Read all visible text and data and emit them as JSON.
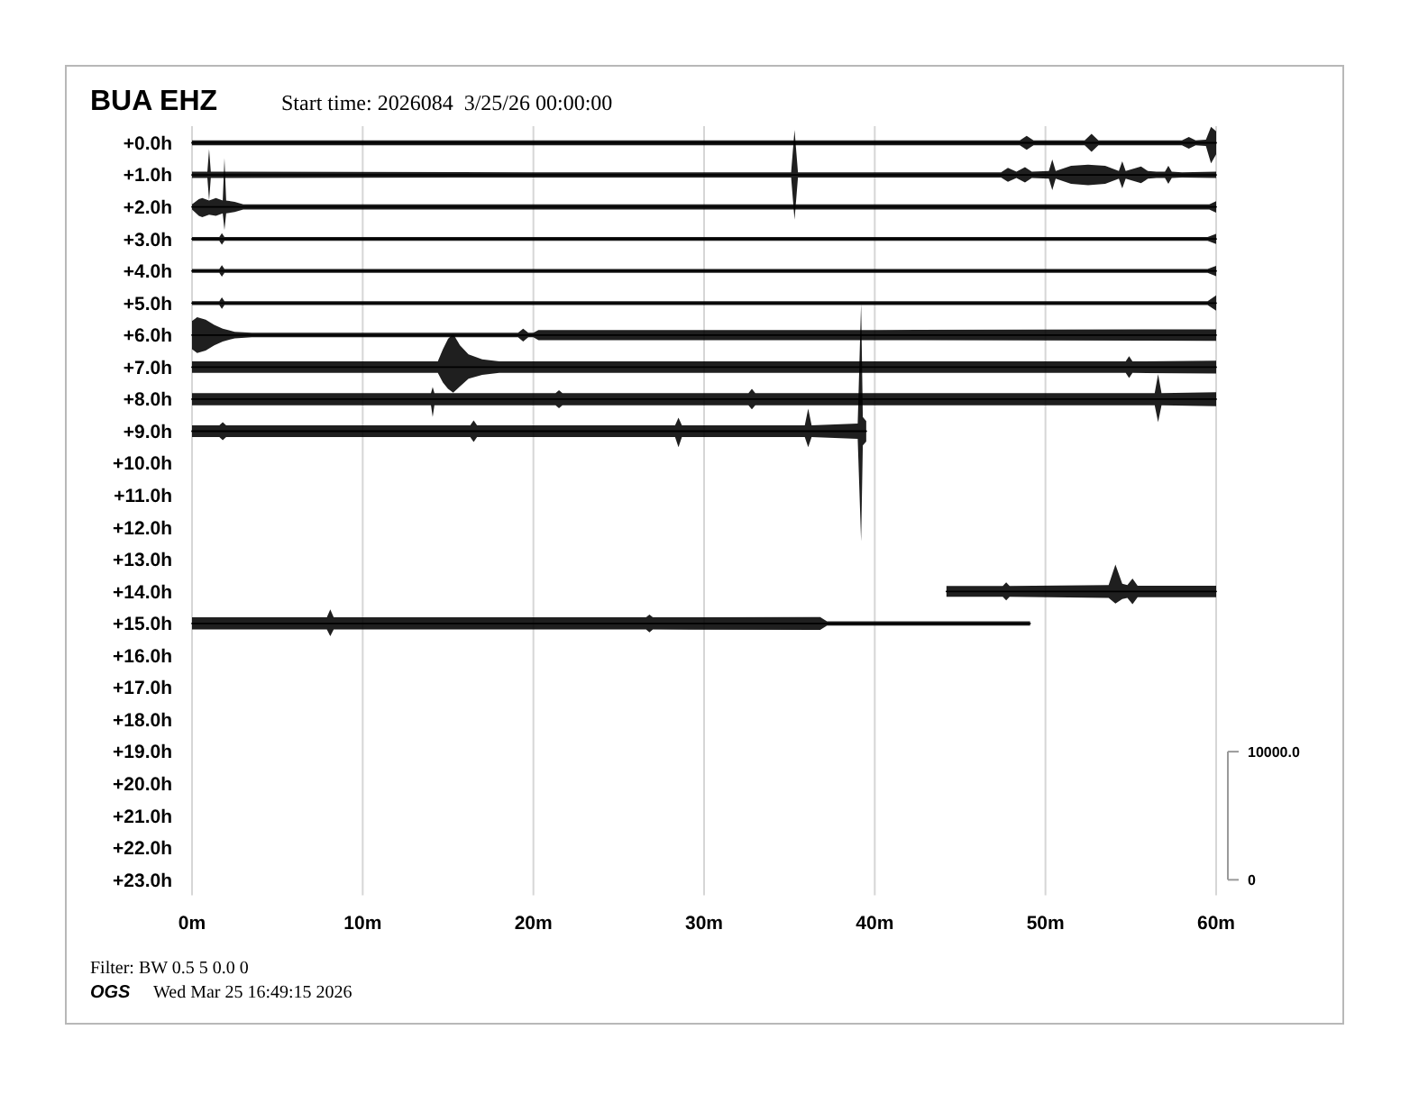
{
  "chart_data": {
    "type": "line",
    "title": "BUA EHZ",
    "subtitle": "Start time: 2026084  3/25/26 00:00:00",
    "annotations": [
      "Filter: BW 0.5 5 0.0 0",
      "OGS",
      "Wed Mar 25 16:49:15 2026"
    ],
    "xlim": [
      0,
      60
    ],
    "xticks": [
      {
        "value": 0,
        "label": "0m"
      },
      {
        "value": 10,
        "label": "10m"
      },
      {
        "value": 20,
        "label": "20m"
      },
      {
        "value": 30,
        "label": "30m"
      },
      {
        "value": 40,
        "label": "40m"
      },
      {
        "value": 50,
        "label": "50m"
      },
      {
        "value": 60,
        "label": "60m"
      }
    ],
    "ylim": [
      23.48,
      -0.52
    ],
    "yticks": [
      {
        "value": 0,
        "label": "+0.0h"
      },
      {
        "value": 1,
        "label": "+1.0h"
      },
      {
        "value": 2,
        "label": "+2.0h"
      },
      {
        "value": 3,
        "label": "+3.0h"
      },
      {
        "value": 4,
        "label": "+4.0h"
      },
      {
        "value": 5,
        "label": "+5.0h"
      },
      {
        "value": 6,
        "label": "+6.0h"
      },
      {
        "value": 7,
        "label": "+7.0h"
      },
      {
        "value": 8,
        "label": "+8.0h"
      },
      {
        "value": 9,
        "label": "+9.0h"
      },
      {
        "value": 10,
        "label": "+10.0h"
      },
      {
        "value": 11,
        "label": "+11.0h"
      },
      {
        "value": 12,
        "label": "+12.0h"
      },
      {
        "value": 13,
        "label": "+13.0h"
      },
      {
        "value": 14,
        "label": "+14.0h"
      },
      {
        "value": 15,
        "label": "+15.0h"
      },
      {
        "value": 16,
        "label": "+16.0h"
      },
      {
        "value": 17,
        "label": "+17.0h"
      },
      {
        "value": 18,
        "label": "+18.0h"
      },
      {
        "value": 19,
        "label": "+19.0h"
      },
      {
        "value": 20,
        "label": "+20.0h"
      },
      {
        "value": 21,
        "label": "+21.0h"
      },
      {
        "value": 22,
        "label": "+22.0h"
      },
      {
        "value": 23,
        "label": "+23.0h"
      }
    ],
    "y2lim": [
      -1200,
      58800
    ],
    "y2ticks": [
      0,
      {
        "value": 10000,
        "label": "10000.0"
      }
    ],
    "grid": "x",
    "series": [
      {
        "color": "#000000",
        "x": [
          0,
          20,
          40,
          48.5,
          48.9,
          49.3,
          52.3,
          52.7,
          53.1,
          58,
          58.4,
          58.8,
          59.4,
          59.7,
          60
        ],
        "values": [
          0,
          0,
          0,
          0,
          0,
          0,
          0,
          0,
          0,
          0,
          0,
          0,
          0,
          0,
          0
        ],
        "lower": [
          -0.08,
          -0.08,
          -0.08,
          -0.08,
          -0.22,
          -0.08,
          -0.08,
          -0.28,
          -0.08,
          -0.08,
          -0.18,
          -0.08,
          -0.1,
          -0.5,
          -0.36
        ],
        "upper": [
          0.08,
          0.08,
          0.08,
          0.08,
          0.22,
          0.08,
          0.08,
          0.28,
          0.08,
          0.08,
          0.18,
          0.08,
          0.1,
          0.64,
          0.36
        ]
      },
      {
        "color": "#000000",
        "x": [
          0,
          0.9,
          1.0,
          1.1,
          1.8,
          20,
          35.1,
          35.3,
          35.5,
          47.4,
          47.8,
          48.3,
          48.8,
          49.2,
          50.2,
          50.4,
          50.6,
          51.5,
          52.5,
          53.5,
          54.3,
          54.5,
          54.7,
          55.6,
          56.0,
          56.5,
          57.0,
          57.2,
          57.4,
          58,
          60
        ],
        "values": [
          1,
          1,
          1,
          1,
          1,
          1,
          1,
          1,
          1,
          1,
          1,
          1,
          1,
          1,
          1,
          1,
          1,
          1,
          1,
          1,
          1,
          1,
          1,
          1,
          1,
          1,
          1,
          1,
          1,
          1,
          1
        ],
        "lower": [
          0.9,
          0.9,
          0.2,
          0.9,
          0.9,
          0.92,
          0.92,
          -0.4,
          0.92,
          0.92,
          0.78,
          0.9,
          0.76,
          0.9,
          0.88,
          0.52,
          0.88,
          0.72,
          0.68,
          0.72,
          0.88,
          0.58,
          0.88,
          0.74,
          0.88,
          0.9,
          0.9,
          0.72,
          0.9,
          0.92,
          0.9
        ],
        "upper": [
          1.1,
          1.1,
          1.8,
          1.1,
          1.1,
          1.08,
          1.08,
          2.4,
          1.08,
          1.08,
          1.22,
          1.1,
          1.24,
          1.1,
          1.12,
          1.48,
          1.12,
          1.28,
          1.32,
          1.28,
          1.12,
          1.42,
          1.12,
          1.26,
          1.12,
          1.1,
          1.1,
          1.28,
          1.1,
          1.08,
          1.1
        ]
      },
      {
        "color": "#000000",
        "x": [
          0,
          0.4,
          0.6,
          1.0,
          1.4,
          1.8,
          1.9,
          2.0,
          2.5,
          3.0,
          20,
          40,
          59.6,
          60
        ],
        "values": [
          2,
          2,
          2,
          2,
          2,
          2,
          2,
          2,
          2,
          2,
          2,
          2,
          2,
          2
        ],
        "lower": [
          1.92,
          1.76,
          1.72,
          1.8,
          1.72,
          1.8,
          0.48,
          1.8,
          1.84,
          1.92,
          1.92,
          1.92,
          1.92,
          1.82
        ],
        "upper": [
          2.08,
          2.28,
          2.32,
          2.24,
          2.28,
          2.2,
          2.72,
          2.2,
          2.16,
          2.08,
          2.08,
          2.08,
          2.08,
          2.18
        ]
      },
      {
        "color": "#000000",
        "x": [
          0,
          1.6,
          1.75,
          1.9,
          30,
          59.5,
          60
        ],
        "values": [
          3,
          3,
          3,
          3,
          3,
          3,
          3
        ],
        "lower": [
          2.94,
          2.94,
          2.82,
          2.94,
          2.94,
          2.94,
          2.84
        ],
        "upper": [
          3.06,
          3.06,
          3.18,
          3.06,
          3.06,
          3.06,
          3.16
        ]
      },
      {
        "color": "#000000",
        "x": [
          0,
          1.6,
          1.75,
          1.9,
          30,
          59.5,
          60
        ],
        "values": [
          4,
          4,
          4,
          4,
          4,
          4,
          4
        ],
        "lower": [
          3.94,
          3.94,
          3.82,
          3.94,
          3.94,
          3.94,
          3.84
        ],
        "upper": [
          4.06,
          4.06,
          4.18,
          4.06,
          4.06,
          4.06,
          4.16
        ]
      },
      {
        "color": "#000000",
        "x": [
          0,
          1.6,
          1.75,
          1.9,
          30,
          59.5,
          60
        ],
        "values": [
          5,
          5,
          5,
          5,
          5,
          5,
          5
        ],
        "lower": [
          4.94,
          4.94,
          4.82,
          4.94,
          4.94,
          4.94,
          4.76
        ],
        "upper": [
          5.06,
          5.06,
          5.18,
          5.06,
          5.06,
          5.06,
          5.24
        ]
      },
      {
        "color": "#000000",
        "x": [
          0,
          0.3,
          0.8,
          1.3,
          1.8,
          2.5,
          3.5,
          19.1,
          19.4,
          19.7,
          20.0,
          20.3,
          40,
          60
        ],
        "values": [
          6,
          6,
          6,
          6,
          6,
          6,
          6,
          6,
          6,
          6,
          6,
          6,
          6,
          6
        ],
        "lower": [
          5.56,
          5.44,
          5.52,
          5.68,
          5.8,
          5.9,
          5.93,
          5.93,
          5.8,
          5.93,
          5.93,
          5.84,
          5.84,
          5.82
        ],
        "upper": [
          6.44,
          6.56,
          6.48,
          6.32,
          6.2,
          6.1,
          6.07,
          6.07,
          6.2,
          6.07,
          6.07,
          6.16,
          6.16,
          6.18
        ]
      },
      {
        "color": "#000000",
        "x": [
          0,
          1.5,
          14.4,
          14.7,
          15.0,
          15.3,
          15.7,
          16.2,
          17.0,
          18.0,
          40,
          54.7,
          54.9,
          55.1,
          60
        ],
        "values": [
          7,
          7,
          7,
          7,
          7,
          7,
          7,
          7,
          7,
          7,
          7,
          7,
          7,
          7,
          7
        ],
        "lower": [
          6.82,
          6.82,
          6.82,
          6.44,
          6.12,
          5.96,
          6.32,
          6.6,
          6.76,
          6.82,
          6.82,
          6.82,
          6.66,
          6.82,
          6.8
        ],
        "upper": [
          7.18,
          7.18,
          7.18,
          7.48,
          7.68,
          7.8,
          7.6,
          7.36,
          7.24,
          7.18,
          7.18,
          7.18,
          7.34,
          7.18,
          7.2
        ]
      },
      {
        "color": "#000000",
        "x": [
          0,
          14.0,
          14.1,
          14.2,
          21.3,
          21.5,
          21.7,
          32.6,
          32.8,
          33.0,
          56.4,
          56.6,
          56.8,
          60
        ],
        "values": [
          8,
          8,
          8,
          8,
          8,
          8,
          8,
          8,
          8,
          8,
          8,
          8,
          8,
          8
        ],
        "lower": [
          7.81,
          7.81,
          7.62,
          7.81,
          7.81,
          7.72,
          7.81,
          7.81,
          7.68,
          7.81,
          7.81,
          7.22,
          7.81,
          7.78
        ],
        "upper": [
          8.19,
          8.19,
          8.56,
          8.19,
          8.19,
          8.28,
          8.19,
          8.19,
          8.32,
          8.19,
          8.19,
          8.72,
          8.19,
          8.22
        ]
      },
      {
        "color": "#000000",
        "x": [
          0,
          1.6,
          1.8,
          2.0,
          16.3,
          16.5,
          16.7,
          28.3,
          28.5,
          28.7,
          35.9,
          36.1,
          36.3,
          39.0,
          39.2,
          39.3,
          39.5
        ],
        "values": [
          9,
          9,
          9,
          9,
          9,
          9,
          9,
          9,
          9,
          9,
          9,
          9,
          9,
          9,
          9,
          9,
          9
        ],
        "lower": [
          8.82,
          8.82,
          8.72,
          8.82,
          8.82,
          8.66,
          8.82,
          8.82,
          8.58,
          8.82,
          8.82,
          8.3,
          8.82,
          8.76,
          5,
          8.56,
          8.68
        ],
        "upper": [
          9.18,
          9.18,
          9.28,
          9.18,
          9.18,
          9.34,
          9.18,
          9.18,
          9.5,
          9.18,
          9.18,
          9.5,
          9.18,
          9.24,
          12.44,
          9.44,
          9.32
        ]
      },
      {
        "color": "#000000",
        "x": [
          44.2,
          47.5,
          47.7,
          47.9,
          53.7,
          54.1,
          54.5,
          54.8,
          55.1,
          55.4,
          60
        ],
        "values": [
          14,
          14,
          14,
          14,
          14,
          14,
          14,
          14,
          14,
          14,
          14
        ],
        "lower": [
          13.83,
          13.83,
          13.72,
          13.83,
          13.8,
          13.16,
          13.76,
          13.8,
          13.6,
          13.82,
          13.82
        ],
        "upper": [
          14.17,
          14.17,
          14.28,
          14.17,
          14.2,
          14.38,
          14.24,
          14.2,
          14.4,
          14.18,
          14.18
        ]
      },
      {
        "color": "#000000",
        "x": [
          0,
          7.9,
          8.1,
          8.3,
          26.6,
          26.8,
          27.0,
          36.8,
          37.2,
          49.1
        ],
        "values": [
          15,
          15,
          15,
          15,
          15,
          15,
          15,
          15,
          15,
          15
        ],
        "lower": [
          14.81,
          14.81,
          14.56,
          14.81,
          14.81,
          14.72,
          14.81,
          14.8,
          14.93,
          14.93
        ],
        "upper": [
          15.19,
          15.19,
          15.4,
          15.19,
          15.19,
          15.28,
          15.19,
          15.2,
          15.07,
          15.07
        ]
      }
    ]
  }
}
